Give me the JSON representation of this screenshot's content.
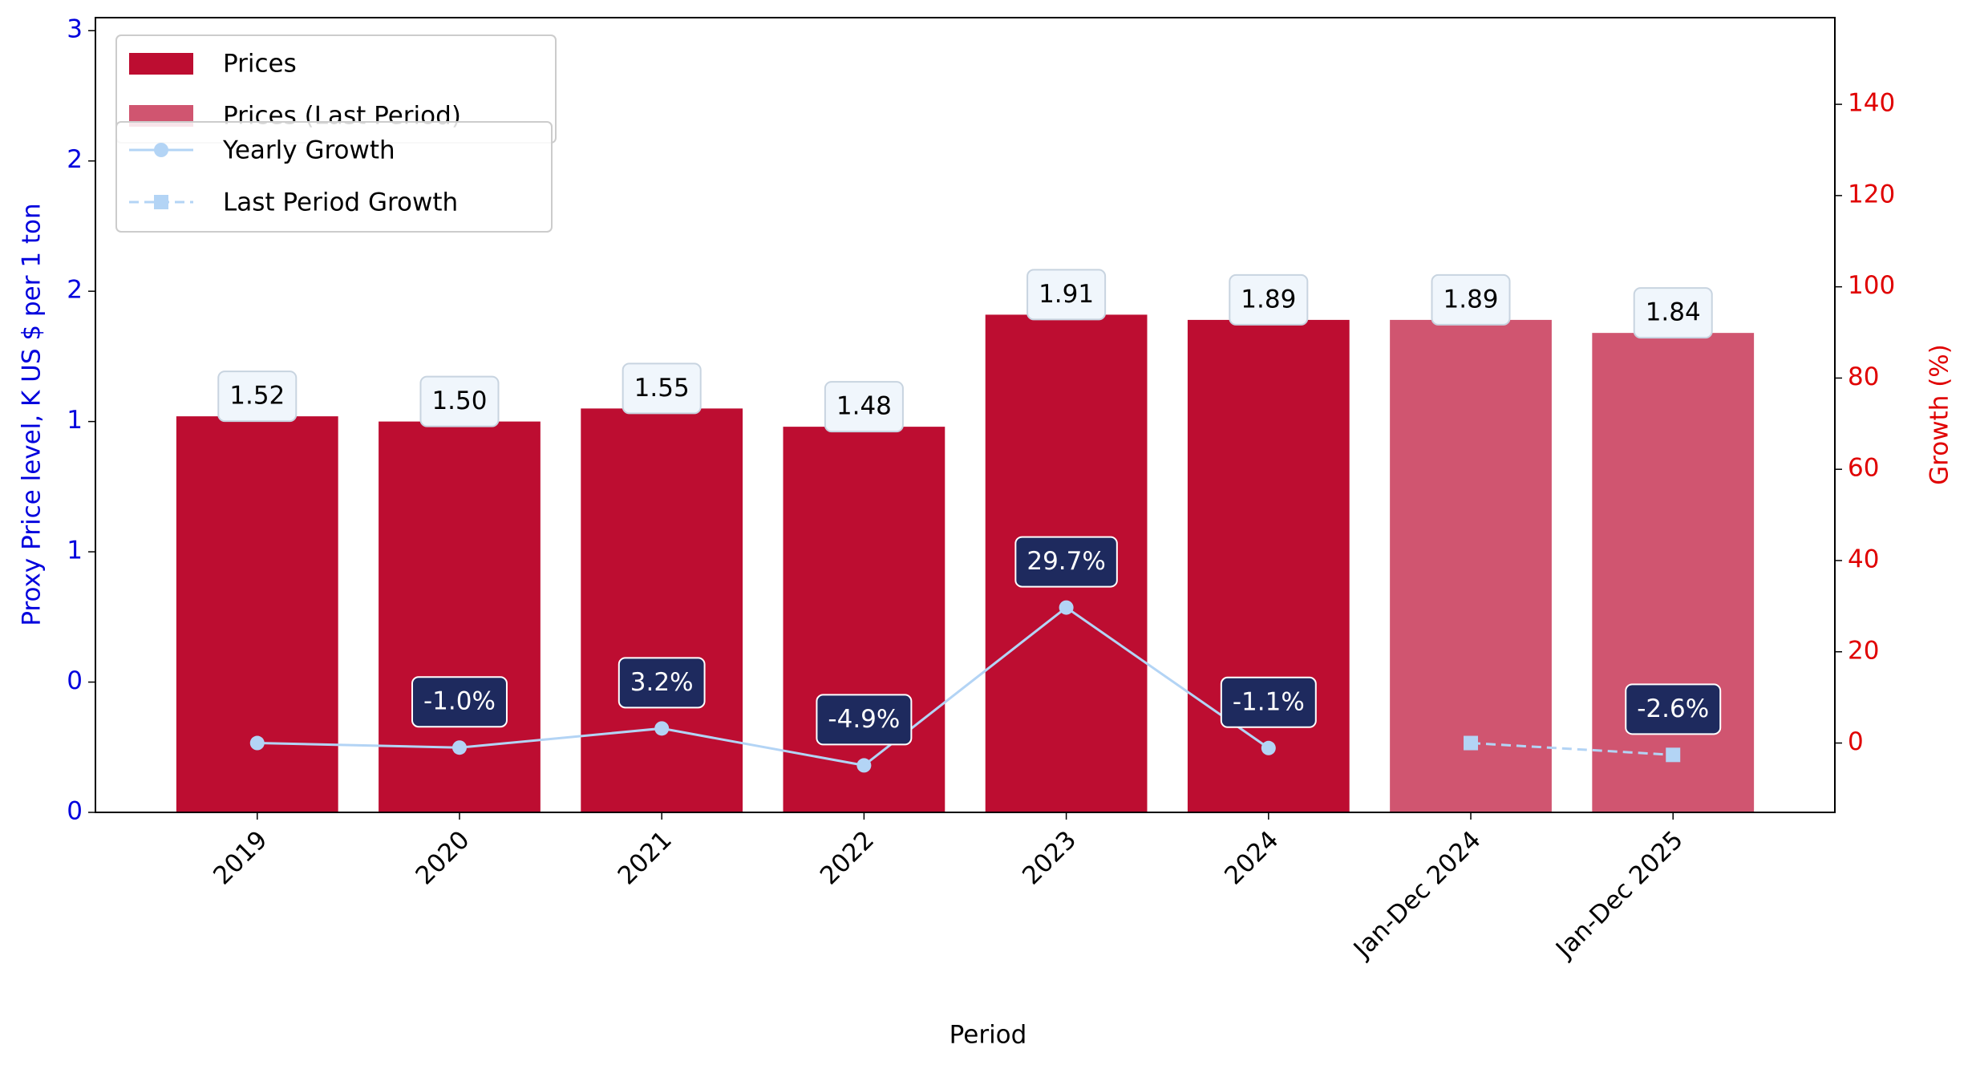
{
  "chart_data": {
    "type": "bar",
    "xlabel": "Period",
    "ylabel": "Proxy Price level, K US $ per 1 ton",
    "y2label": "Growth (%)",
    "categories": [
      "2019",
      "2020",
      "2021",
      "2022",
      "2023",
      "2024",
      "Jan-Dec 2024",
      "Jan-Dec 2025"
    ],
    "series": [
      {
        "name": "Prices",
        "type": "bar",
        "color": "#bd0d31",
        "values": [
          1.52,
          1.5,
          1.55,
          1.48,
          1.91,
          1.89,
          null,
          null
        ],
        "value_labels": [
          "1.52",
          "1.50",
          "1.55",
          "1.48",
          "1.91",
          "1.89",
          null,
          null
        ]
      },
      {
        "name": "Prices (Last Period)",
        "type": "bar",
        "color": "#d05570",
        "values": [
          null,
          null,
          null,
          null,
          null,
          null,
          1.89,
          1.84
        ],
        "value_labels": [
          null,
          null,
          null,
          null,
          null,
          null,
          "1.89",
          "1.84"
        ]
      },
      {
        "name": "Yearly Growth",
        "type": "line",
        "axis": "y2",
        "color": "#b3d4f5",
        "marker": "circle",
        "linestyle": "solid",
        "values": [
          0,
          -1.0,
          3.2,
          -4.9,
          29.7,
          -1.1,
          null,
          null
        ],
        "value_labels": [
          null,
          "-1.0%",
          "3.2%",
          "-4.9%",
          "29.7%",
          "-1.1%",
          null,
          null
        ]
      },
      {
        "name": "Last Period Growth",
        "type": "line",
        "axis": "y2",
        "color": "#b3d4f5",
        "marker": "square",
        "linestyle": "dashed",
        "values": [
          null,
          null,
          null,
          null,
          null,
          null,
          0,
          -2.6
        ],
        "value_labels": [
          null,
          null,
          null,
          null,
          null,
          null,
          null,
          "-2.6%"
        ]
      }
    ],
    "ylim": [
      0,
      3.05
    ],
    "yticks": [
      0,
      {
        "value": 0.5,
        "label": "0"
      },
      {
        "value": 1,
        "label": "1"
      },
      {
        "value": 1.5,
        "label": "1"
      },
      {
        "value": 2,
        "label": "2"
      },
      {
        "value": 2.5,
        "label": "2"
      },
      3
    ],
    "y2lim": [
      -15.2,
      159
    ],
    "y2ticks": [
      0,
      20,
      40,
      60,
      80,
      100,
      120,
      140
    ],
    "ylabel_color": "#0000dd",
    "y2label_color": "#e00000",
    "legend": "upper left",
    "grid": false
  }
}
